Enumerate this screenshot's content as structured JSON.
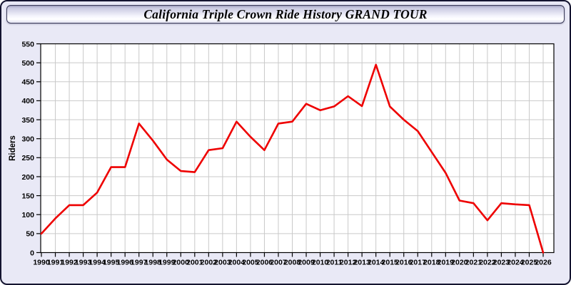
{
  "window": {
    "title": "California Triple Crown Ride History GRAND TOUR",
    "background_color": "#e9e9f6",
    "border_color": "#141430"
  },
  "chart_data": {
    "type": "line",
    "title": "California Triple Crown Ride History GRAND TOUR",
    "xlabel": "",
    "ylabel": "Riders",
    "x": [
      1990,
      1991,
      1992,
      1993,
      1994,
      1995,
      1996,
      1997,
      1998,
      1999,
      2000,
      2001,
      2002,
      2003,
      2004,
      2005,
      2006,
      2007,
      2008,
      2009,
      2010,
      2011,
      2012,
      2013,
      2014,
      2015,
      2016,
      2017,
      2018,
      2019,
      2020,
      2021,
      2022,
      2023,
      2024,
      2025,
      2026
    ],
    "series": [
      {
        "name": "Riders",
        "color": "#ee0000",
        "values": [
          50,
          90,
          125,
          125,
          158,
          225,
          225,
          340,
          295,
          245,
          215,
          212,
          270,
          275,
          345,
          305,
          270,
          340,
          345,
          392,
          375,
          385,
          412,
          386,
          495,
          385,
          350,
          320,
          265,
          210,
          137,
          130,
          85,
          130,
          127,
          125,
          0
        ]
      }
    ],
    "ylim": [
      0,
      550
    ],
    "ytick_step": 50,
    "grid": true,
    "legend_position": "none",
    "plot_bg": "#ffffff",
    "grid_color": "#c9c9c9",
    "axis_color": "#000000",
    "tick_label_color": "#000000"
  }
}
